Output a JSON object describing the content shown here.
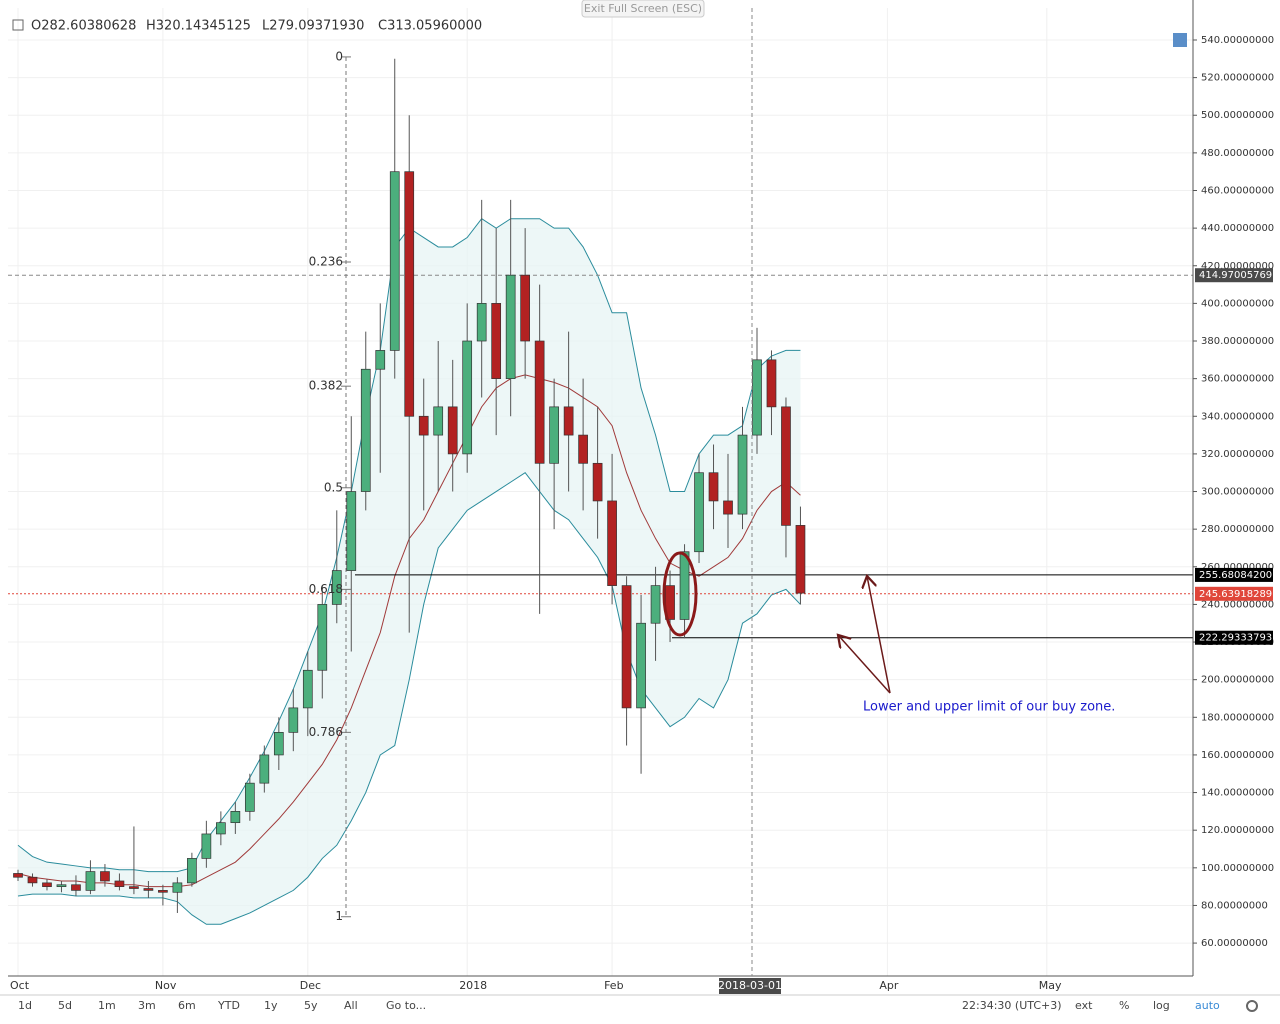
{
  "header": {
    "open": "O282.60380628",
    "high": "H320.14345125",
    "low": "L279.09371930",
    "close": "C313.05960000",
    "exit": "Exit Full Screen (ESC)"
  },
  "toolbar": {
    "ranges": [
      "1d",
      "5d",
      "1m",
      "3m",
      "6m",
      "YTD",
      "1y",
      "5y",
      "All"
    ],
    "goto": "Go to...",
    "time": "22:34:30 (UTC+3)",
    "options": [
      "ext",
      "%",
      "log",
      "auto"
    ]
  },
  "chart_data": {
    "type": "candlestick",
    "categories": [
      "Oct",
      null,
      null,
      null,
      null,
      null,
      null,
      null,
      null,
      null,
      "Nov",
      null,
      null,
      null,
      null,
      null,
      null,
      null,
      null,
      null,
      "Dec",
      null,
      null,
      null,
      null,
      null,
      null,
      null,
      null,
      null,
      null,
      "2018",
      null,
      null,
      null,
      null,
      null,
      null,
      null,
      null,
      null,
      "Feb",
      null,
      null,
      null,
      null,
      null,
      null,
      null,
      null,
      null,
      null,
      null,
      null,
      null,
      null,
      null,
      null,
      null,
      null,
      "Apr",
      null,
      null,
      null,
      null,
      null,
      null,
      null,
      null,
      null,
      null,
      "May"
    ],
    "candles": [
      [
        97,
        99,
        93,
        95
      ],
      [
        95,
        97,
        90,
        92
      ],
      [
        92,
        94,
        88,
        90
      ],
      [
        90,
        93,
        87,
        91
      ],
      [
        91,
        96,
        85,
        88
      ],
      [
        88,
        104,
        86,
        98
      ],
      [
        98,
        102,
        90,
        93
      ],
      [
        93,
        97,
        88,
        90
      ],
      [
        90,
        122,
        86,
        89
      ],
      [
        89,
        93,
        84,
        88
      ],
      [
        88,
        91,
        80,
        87
      ],
      [
        87,
        95,
        76,
        92
      ],
      [
        92,
        108,
        90,
        105
      ],
      [
        105,
        125,
        100,
        118
      ],
      [
        118,
        130,
        112,
        124
      ],
      [
        124,
        135,
        118,
        130
      ],
      [
        130,
        150,
        125,
        145
      ],
      [
        145,
        165,
        140,
        160
      ],
      [
        160,
        180,
        152,
        172
      ],
      [
        172,
        195,
        162,
        185
      ],
      [
        185,
        215,
        170,
        205
      ],
      [
        205,
        250,
        190,
        240
      ],
      [
        240,
        290,
        230,
        258
      ],
      [
        258,
        340,
        215,
        300
      ],
      [
        300,
        385,
        290,
        365
      ],
      [
        365,
        400,
        310,
        375
      ],
      [
        375,
        530,
        360,
        470
      ],
      [
        470,
        500,
        225,
        340
      ],
      [
        340,
        360,
        290,
        330
      ],
      [
        330,
        380,
        300,
        345
      ],
      [
        345,
        370,
        300,
        320
      ],
      [
        320,
        400,
        310,
        380
      ],
      [
        380,
        455,
        350,
        400
      ],
      [
        400,
        440,
        330,
        360
      ],
      [
        360,
        455,
        340,
        415
      ],
      [
        415,
        440,
        360,
        380
      ],
      [
        380,
        410,
        235,
        315
      ],
      [
        315,
        360,
        280,
        345
      ],
      [
        345,
        385,
        300,
        330
      ],
      [
        330,
        360,
        290,
        315
      ],
      [
        315,
        345,
        275,
        295
      ],
      [
        295,
        320,
        240,
        250
      ],
      [
        250,
        255,
        165,
        185
      ],
      [
        185,
        245,
        150,
        230
      ],
      [
        230,
        260,
        210,
        250
      ],
      [
        250,
        258,
        220,
        232
      ],
      [
        232,
        272,
        222,
        268
      ],
      [
        268,
        320,
        262,
        310
      ],
      [
        310,
        325,
        280,
        295
      ],
      [
        295,
        320,
        270,
        288
      ],
      [
        288,
        345,
        280,
        330
      ],
      [
        330,
        387,
        320,
        370
      ],
      [
        370,
        375,
        330,
        345
      ],
      [
        345,
        350,
        265,
        282
      ],
      [
        282,
        292,
        240,
        246
      ],
      null,
      null,
      null,
      null,
      null,
      null,
      null,
      null,
      null,
      null,
      null,
      null,
      null,
      null,
      null,
      null,
      null
    ],
    "up_color": "#4caf7d",
    "down_color": "#b22222",
    "bands": {
      "color": "#2a8c9c",
      "mid_color": "#a03a3a",
      "fill": "#e6f3f3",
      "upper": [
        112,
        106,
        103,
        102,
        101,
        100,
        100,
        99,
        99,
        98,
        98,
        98,
        100,
        115,
        125,
        135,
        148,
        162,
        178,
        195,
        215,
        235,
        265,
        300,
        340,
        375,
        430,
        440,
        435,
        430,
        430,
        435,
        445,
        440,
        445,
        445,
        445,
        440,
        440,
        430,
        415,
        395,
        395,
        355,
        330,
        300,
        300,
        320,
        330,
        330,
        335,
        365,
        372,
        375,
        375,
        null,
        null,
        null,
        null,
        null,
        null,
        null,
        null,
        null,
        null,
        null,
        null,
        null,
        null,
        null,
        null,
        null
      ],
      "middle": [
        97,
        95,
        94,
        93,
        93,
        92,
        92,
        91,
        91,
        90,
        90,
        90,
        91,
        95,
        99,
        103,
        110,
        118,
        126,
        135,
        145,
        155,
        168,
        185,
        205,
        225,
        255,
        275,
        285,
        300,
        315,
        330,
        345,
        355,
        360,
        362,
        360,
        358,
        355,
        350,
        345,
        335,
        310,
        290,
        275,
        262,
        258,
        255,
        260,
        265,
        275,
        290,
        300,
        305,
        298,
        null,
        null,
        null,
        null,
        null,
        null,
        null,
        null,
        null,
        null,
        null,
        null,
        null,
        null,
        null,
        null,
        null
      ],
      "lower": [
        85,
        86,
        86,
        86,
        85,
        85,
        85,
        85,
        84,
        84,
        84,
        82,
        75,
        70,
        70,
        73,
        76,
        80,
        84,
        88,
        95,
        105,
        112,
        125,
        140,
        160,
        165,
        200,
        240,
        270,
        280,
        290,
        295,
        300,
        305,
        310,
        300,
        290,
        285,
        275,
        265,
        250,
        215,
        195,
        185,
        175,
        180,
        190,
        185,
        200,
        230,
        235,
        245,
        248,
        240,
        null,
        null,
        null,
        null,
        null,
        null,
        null,
        null,
        null,
        null,
        null,
        null,
        null,
        null,
        null,
        null,
        null
      ]
    },
    "ylim": [
      42.5,
      557
    ],
    "yticks": [
      {
        "value": 60,
        "label": "60.00000000"
      },
      {
        "value": 80,
        "label": "80.00000000"
      },
      {
        "value": 100,
        "label": "100.00000000"
      },
      {
        "value": 120,
        "label": "120.00000000"
      },
      {
        "value": 140,
        "label": "140.00000000"
      },
      {
        "value": 160,
        "label": "160.00000000"
      },
      {
        "value": 180,
        "label": "180.00000000"
      },
      {
        "value": 200,
        "label": "200.00000000"
      },
      {
        "value": 220,
        "label": "220.00000000"
      },
      {
        "value": 240,
        "label": "240.00000000"
      },
      {
        "value": 260,
        "label": "260.00000000"
      },
      {
        "value": 280,
        "label": "280.00000000"
      },
      {
        "value": 300,
        "label": "300.00000000"
      },
      {
        "value": 320,
        "label": "320.00000000"
      },
      {
        "value": 340,
        "label": "340.00000000"
      },
      {
        "value": 360,
        "label": "360.00000000"
      },
      {
        "value": 380,
        "label": "380.00000000"
      },
      {
        "value": 400,
        "label": "400.00000000"
      },
      {
        "value": 420,
        "label": "420.00000000"
      },
      {
        "value": 440,
        "label": "440.00000000"
      },
      {
        "value": 460,
        "label": "460.00000000"
      },
      {
        "value": 480,
        "label": "480.00000000"
      },
      {
        "value": 500,
        "label": "500.00000000"
      },
      {
        "value": 520,
        "label": "520.00000000"
      },
      {
        "value": 540,
        "label": "540.00000000"
      }
    ],
    "grid": true,
    "fib_levels": [
      {
        "level": 0,
        "price": 531
      },
      {
        "level": 0.236,
        "price": 422
      },
      {
        "level": 0.382,
        "price": 356
      },
      {
        "level": 0.5,
        "price": 302
      },
      {
        "level": 0.618,
        "price": 248
      },
      {
        "level": 0.786,
        "price": 172
      },
      {
        "level": 1,
        "price": 74
      }
    ],
    "price_lines": [
      {
        "value": 255.680842,
        "label": "255.68084200",
        "color": "#000000"
      },
      {
        "value": 222.29333793,
        "label": "222.29333793",
        "color": "#000000"
      },
      {
        "value": 245.63918289,
        "label": "245.63918289",
        "color": "#e0463a"
      }
    ],
    "crosshair": {
      "price": {
        "value": 414.97005769,
        "label": "414.97005769"
      },
      "x_label": "2018-03-01"
    },
    "annotation": "Lower and upper limit of our buy zone."
  }
}
